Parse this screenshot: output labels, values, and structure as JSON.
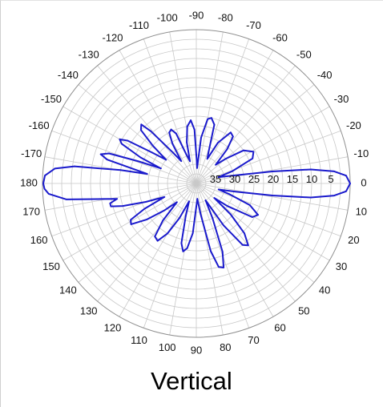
{
  "title": "Vertical",
  "colors": {
    "pattern": "#1a1acc",
    "grid": "#c8c8c8",
    "outer_ring": "#909090",
    "text": "#111111"
  },
  "chart_data": {
    "type": "polar-line",
    "title": "Vertical",
    "angle_ticks": [
      {
        "deg": 0,
        "label": "0"
      },
      {
        "deg": 10,
        "label": "10"
      },
      {
        "deg": 20,
        "label": "20"
      },
      {
        "deg": 30,
        "label": "30"
      },
      {
        "deg": 40,
        "label": "40"
      },
      {
        "deg": 50,
        "label": "50"
      },
      {
        "deg": 60,
        "label": "60"
      },
      {
        "deg": 70,
        "label": "70"
      },
      {
        "deg": 80,
        "label": "80"
      },
      {
        "deg": 90,
        "label": "90"
      },
      {
        "deg": 100,
        "label": "100"
      },
      {
        "deg": 110,
        "label": "110"
      },
      {
        "deg": 120,
        "label": "120"
      },
      {
        "deg": 130,
        "label": "130"
      },
      {
        "deg": 140,
        "label": "140"
      },
      {
        "deg": 150,
        "label": "150"
      },
      {
        "deg": 160,
        "label": "160"
      },
      {
        "deg": 170,
        "label": "170"
      },
      {
        "deg": 180,
        "label": "180"
      },
      {
        "deg": -170,
        "label": "-170"
      },
      {
        "deg": -160,
        "label": "-160"
      },
      {
        "deg": -150,
        "label": "-150"
      },
      {
        "deg": -140,
        "label": "-140"
      },
      {
        "deg": -130,
        "label": "-130"
      },
      {
        "deg": -120,
        "label": "-120"
      },
      {
        "deg": -110,
        "label": "-110"
      },
      {
        "deg": -100,
        "label": "-100"
      },
      {
        "deg": -90,
        "label": "-90"
      },
      {
        "deg": -80,
        "label": "-80"
      },
      {
        "deg": -70,
        "label": "-70"
      },
      {
        "deg": -60,
        "label": "-60"
      },
      {
        "deg": -50,
        "label": "-50"
      },
      {
        "deg": -40,
        "label": "-40"
      },
      {
        "deg": -30,
        "label": "-30"
      },
      {
        "deg": -20,
        "label": "-20"
      },
      {
        "deg": -10,
        "label": "-10"
      }
    ],
    "radial_axis": {
      "unit": "dB below peak",
      "range": [
        0,
        40
      ],
      "ring_step": 2.5,
      "tick_labels": [
        "5",
        "10",
        "15",
        "20",
        "25",
        "30",
        "35"
      ]
    },
    "grid": true,
    "series": [
      {
        "points": [
          {
            "angle": -180,
            "value": 0.2
          },
          {
            "angle": -177,
            "value": 0.6
          },
          {
            "angle": -174,
            "value": 3
          },
          {
            "angle": -172,
            "value": 8
          },
          {
            "angle": -170,
            "value": 20
          },
          {
            "angle": -169,
            "value": 27
          },
          {
            "angle": -167,
            "value": 23
          },
          {
            "angle": -165,
            "value": 16
          },
          {
            "angle": -163,
            "value": 14
          },
          {
            "angle": -161,
            "value": 16
          },
          {
            "angle": -159,
            "value": 24
          },
          {
            "angle": -157,
            "value": 30
          },
          {
            "angle": -155,
            "value": 24
          },
          {
            "angle": -152,
            "value": 18
          },
          {
            "angle": -150,
            "value": 17
          },
          {
            "angle": -148,
            "value": 19
          },
          {
            "angle": -145,
            "value": 26
          },
          {
            "angle": -142,
            "value": 30
          },
          {
            "angle": -139,
            "value": 25
          },
          {
            "angle": -136,
            "value": 20
          },
          {
            "angle": -133,
            "value": 19
          },
          {
            "angle": -131,
            "value": 22
          },
          {
            "angle": -127,
            "value": 30
          },
          {
            "angle": -124,
            "value": 33
          },
          {
            "angle": -121,
            "value": 28
          },
          {
            "angle": -118,
            "value": 25
          },
          {
            "angle": -115,
            "value": 24.5
          },
          {
            "angle": -112,
            "value": 26
          },
          {
            "angle": -109,
            "value": 32
          },
          {
            "angle": -106,
            "value": 34
          },
          {
            "angle": -103,
            "value": 29
          },
          {
            "angle": -99,
            "value": 25
          },
          {
            "angle": -95,
            "value": 23.5
          },
          {
            "angle": -92,
            "value": 26
          },
          {
            "angle": -89,
            "value": 34
          },
          {
            "angle": -87,
            "value": 36
          },
          {
            "angle": -84,
            "value": 28
          },
          {
            "angle": -80,
            "value": 23
          },
          {
            "angle": -77,
            "value": 22.5
          },
          {
            "angle": -73,
            "value": 24
          },
          {
            "angle": -69,
            "value": 31
          },
          {
            "angle": -66,
            "value": 33
          },
          {
            "angle": -62,
            "value": 28
          },
          {
            "angle": -56,
            "value": 24
          },
          {
            "angle": -52,
            "value": 24.5
          },
          {
            "angle": -48,
            "value": 28
          },
          {
            "angle": -44,
            "value": 33
          },
          {
            "angle": -40,
            "value": 30
          },
          {
            "angle": -35,
            "value": 25
          },
          {
            "angle": -29,
            "value": 23
          },
          {
            "angle": -24,
            "value": 24
          },
          {
            "angle": -19,
            "value": 30
          },
          {
            "angle": -16,
            "value": 34
          },
          {
            "angle": -12,
            "value": 30
          },
          {
            "angle": -9,
            "value": 20
          },
          {
            "angle": -7,
            "value": 10
          },
          {
            "angle": -5,
            "value": 4
          },
          {
            "angle": -3,
            "value": 1
          },
          {
            "angle": 0,
            "value": 0
          },
          {
            "angle": 3,
            "value": 1
          },
          {
            "angle": 5,
            "value": 4
          },
          {
            "angle": 7,
            "value": 10
          },
          {
            "angle": 9,
            "value": 20
          },
          {
            "angle": 12,
            "value": 30
          },
          {
            "angle": 15,
            "value": 34
          },
          {
            "angle": 18,
            "value": 31
          },
          {
            "angle": 22,
            "value": 25
          },
          {
            "angle": 27,
            "value": 22
          },
          {
            "angle": 31,
            "value": 23
          },
          {
            "angle": 36,
            "value": 30
          },
          {
            "angle": 39,
            "value": 34
          },
          {
            "angle": 42,
            "value": 28
          },
          {
            "angle": 46,
            "value": 22
          },
          {
            "angle": 50,
            "value": 19
          },
          {
            "angle": 53,
            "value": 20
          },
          {
            "angle": 57,
            "value": 27
          },
          {
            "angle": 61,
            "value": 35
          },
          {
            "angle": 65,
            "value": 30
          },
          {
            "angle": 69,
            "value": 21
          },
          {
            "angle": 72,
            "value": 17
          },
          {
            "angle": 75,
            "value": 17.5
          },
          {
            "angle": 78,
            "value": 22
          },
          {
            "angle": 82,
            "value": 32
          },
          {
            "angle": 86,
            "value": 36
          },
          {
            "angle": 90,
            "value": 34
          },
          {
            "angle": 94,
            "value": 27
          },
          {
            "angle": 98,
            "value": 23
          },
          {
            "angle": 101,
            "value": 22
          },
          {
            "angle": 104,
            "value": 24
          },
          {
            "angle": 108,
            "value": 31
          },
          {
            "angle": 112,
            "value": 35
          },
          {
            "angle": 116,
            "value": 30
          },
          {
            "angle": 120,
            "value": 25
          },
          {
            "angle": 124,
            "value": 22
          },
          {
            "angle": 128,
            "value": 22.5
          },
          {
            "angle": 132,
            "value": 27
          },
          {
            "angle": 136,
            "value": 33
          },
          {
            "angle": 140,
            "value": 29
          },
          {
            "angle": 144,
            "value": 24
          },
          {
            "angle": 148,
            "value": 20
          },
          {
            "angle": 151,
            "value": 20.5
          },
          {
            "angle": 154,
            "value": 25
          },
          {
            "angle": 157,
            "value": 31
          },
          {
            "angle": 160,
            "value": 26
          },
          {
            "angle": 163,
            "value": 20
          },
          {
            "angle": 165,
            "value": 17
          },
          {
            "angle": 167,
            "value": 17
          },
          {
            "angle": 169,
            "value": 19
          },
          {
            "angle": 171,
            "value": 14
          },
          {
            "angle": 173,
            "value": 6
          },
          {
            "angle": 176,
            "value": 1.5
          },
          {
            "angle": 178,
            "value": 0.5
          },
          {
            "angle": 180,
            "value": 0.2
          }
        ]
      }
    ]
  }
}
